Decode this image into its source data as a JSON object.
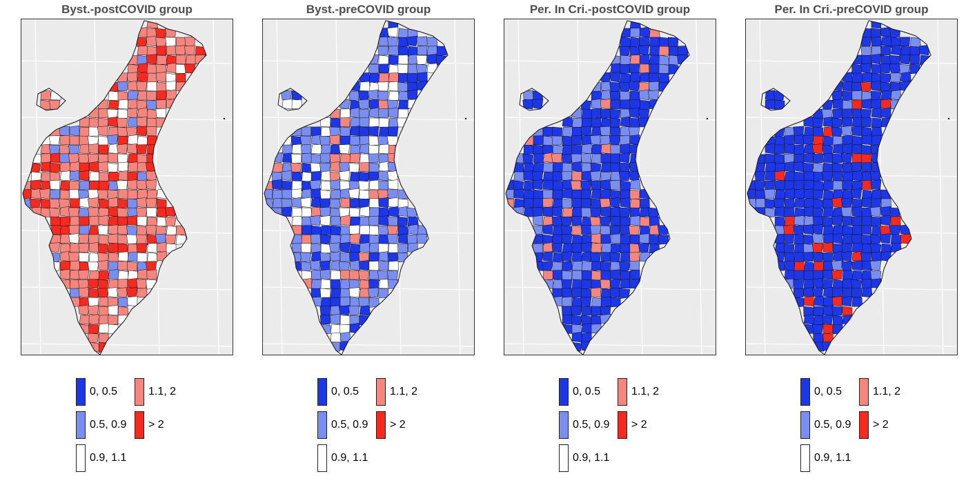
{
  "colors": {
    "c1": "#1e37e6",
    "c2": "#7a8df0",
    "c3": "#ffffff",
    "c4": "#f4867f",
    "c5": "#f42a20"
  },
  "panels": [
    {
      "title": "Byst.-postCOVID group",
      "palette": [
        "c4",
        "c4",
        "c5",
        "c4",
        "c3",
        "c2",
        "c4",
        "c5",
        "c4",
        "c3"
      ]
    },
    {
      "title": "Byst.-preCOVID group",
      "palette": [
        "c1",
        "c2",
        "c2",
        "c3",
        "c1",
        "c2",
        "c4",
        "c1",
        "c2",
        "c3"
      ]
    },
    {
      "title": "Per. In Cri.-postCOVID group",
      "palette": [
        "c1",
        "c1",
        "c2",
        "c1",
        "c1",
        "c2",
        "c1",
        "c1",
        "c4",
        "c1"
      ]
    },
    {
      "title": "Per. In Cri.-preCOVID group",
      "palette": [
        "c1",
        "c1",
        "c1",
        "c1",
        "c2",
        "c1",
        "c1",
        "c1",
        "c1",
        "c5"
      ]
    }
  ],
  "legend": [
    {
      "label": "0, 0.5",
      "color": "c1"
    },
    {
      "label": "0.5, 0.9",
      "color": "c2"
    },
    {
      "label": "0.9, 1.1",
      "color": "c3"
    },
    {
      "label": "1.1, 2",
      "color": "c4"
    },
    {
      "label": "> 2",
      "color": "c5"
    }
  ]
}
